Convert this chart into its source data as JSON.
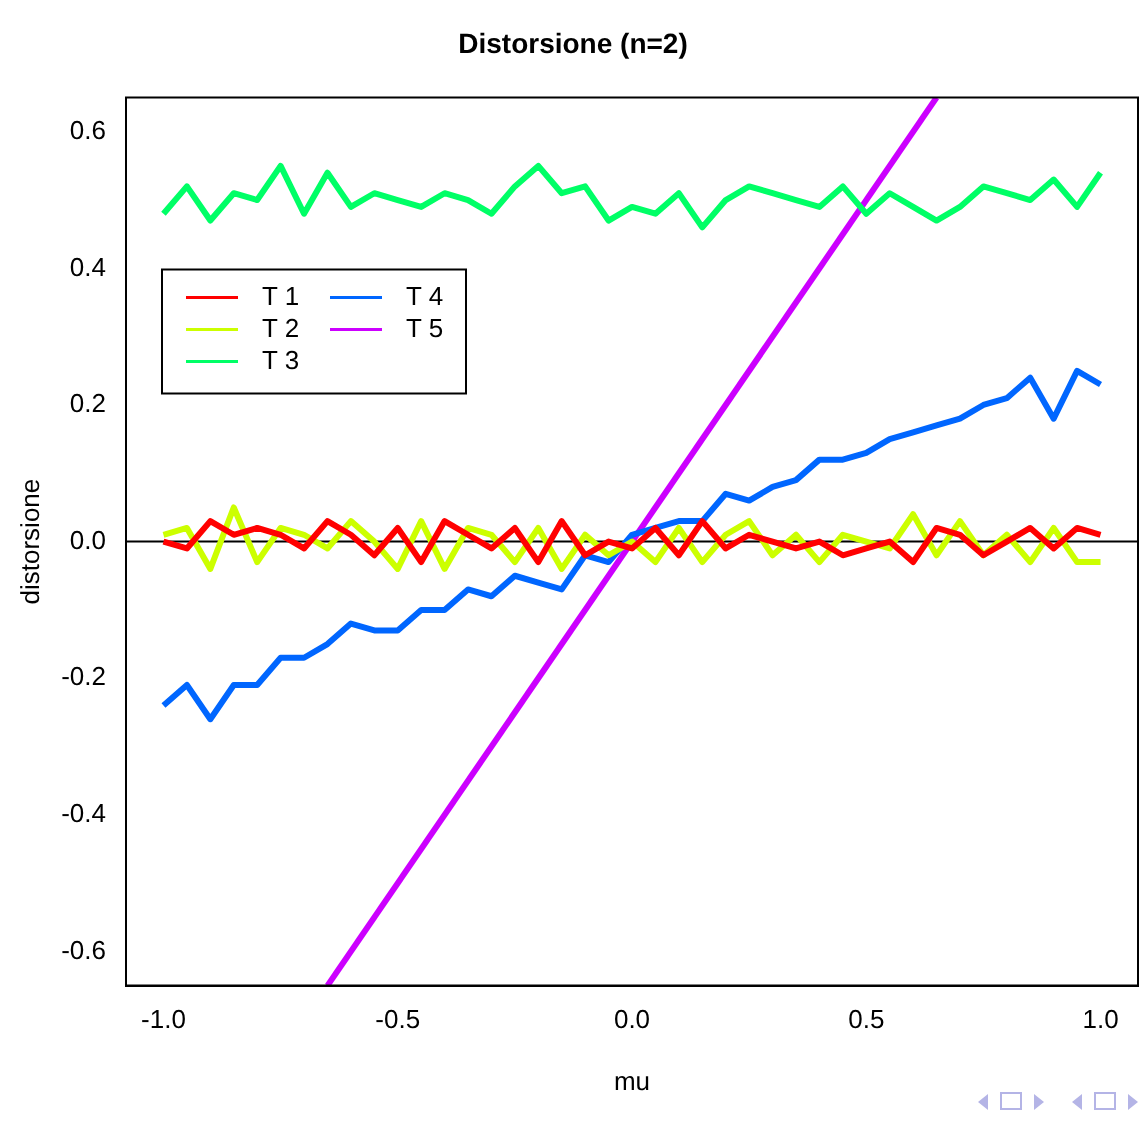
{
  "chart_data": {
    "type": "line",
    "title": "Distorsione (n=2)",
    "xlabel": "mu",
    "ylabel": "distorsione",
    "x": [
      -1,
      -0.95,
      -0.9,
      -0.85,
      -0.8,
      -0.75,
      -0.7,
      -0.65,
      -0.6,
      -0.55,
      -0.5,
      -0.45,
      -0.4,
      -0.35,
      -0.3,
      -0.25,
      -0.2,
      -0.15,
      -0.1,
      -0.05,
      0,
      0.05,
      0.1,
      0.15,
      0.2,
      0.25,
      0.3,
      0.35,
      0.4,
      0.45,
      0.5,
      0.55,
      0.6,
      0.65,
      0.7,
      0.75,
      0.8,
      0.85,
      0.9,
      0.95,
      1
    ],
    "series": [
      {
        "name": "T 1",
        "color": "#ff0000",
        "values": [
          0.0,
          -0.01,
          0.03,
          0.01,
          0.02,
          0.01,
          -0.01,
          0.03,
          0.01,
          -0.02,
          0.02,
          -0.03,
          0.03,
          0.01,
          -0.01,
          0.02,
          -0.03,
          0.03,
          -0.02,
          0.0,
          -0.01,
          0.02,
          -0.02,
          0.03,
          -0.01,
          0.01,
          0.0,
          -0.01,
          0.0,
          -0.02,
          -0.01,
          0.0,
          -0.03,
          0.02,
          0.01,
          -0.02,
          0.0,
          0.02,
          -0.01,
          0.02,
          0.01
        ]
      },
      {
        "name": "T 2",
        "color": "#ccff00",
        "values": [
          0.01,
          0.02,
          -0.04,
          0.05,
          -0.03,
          0.02,
          0.01,
          -0.01,
          0.03,
          0.0,
          -0.04,
          0.03,
          -0.04,
          0.02,
          0.01,
          -0.03,
          0.02,
          -0.04,
          0.01,
          -0.02,
          0.0,
          -0.03,
          0.02,
          -0.03,
          0.01,
          0.03,
          -0.02,
          0.01,
          -0.03,
          0.01,
          0.0,
          -0.01,
          0.04,
          -0.02,
          0.03,
          -0.02,
          0.01,
          -0.03,
          0.02,
          -0.03,
          -0.03
        ]
      },
      {
        "name": "T 3",
        "color": "#00ff66",
        "values": [
          0.48,
          0.52,
          0.47,
          0.51,
          0.5,
          0.55,
          0.48,
          0.54,
          0.49,
          0.51,
          0.5,
          0.49,
          0.51,
          0.5,
          0.48,
          0.52,
          0.55,
          0.51,
          0.52,
          0.47,
          0.49,
          0.48,
          0.51,
          0.46,
          0.5,
          0.52,
          0.51,
          0.5,
          0.49,
          0.52,
          0.48,
          0.51,
          0.49,
          0.47,
          0.49,
          0.52,
          0.51,
          0.5,
          0.53,
          0.49,
          0.54
        ]
      },
      {
        "name": "T 4",
        "color": "#0066ff",
        "values": [
          -0.24,
          -0.21,
          -0.26,
          -0.21,
          -0.21,
          -0.17,
          -0.17,
          -0.15,
          -0.12,
          -0.13,
          -0.13,
          -0.1,
          -0.1,
          -0.07,
          -0.08,
          -0.05,
          -0.06,
          -0.07,
          -0.02,
          -0.03,
          0.01,
          0.02,
          0.03,
          0.03,
          0.07,
          0.06,
          0.08,
          0.09,
          0.12,
          0.12,
          0.13,
          0.15,
          0.16,
          0.17,
          0.18,
          0.2,
          0.21,
          0.24,
          0.18,
          0.25,
          0.23
        ]
      },
      {
        "name": "T 5",
        "color": "#cc00ff",
        "x": [
          -0.65,
          0.65
        ],
        "values": [
          -0.65,
          0.65
        ]
      }
    ],
    "xlim": [
      -1.08,
      1.08
    ],
    "ylim": [
      -0.65,
      0.65
    ],
    "xticks": [
      {
        "value": -1,
        "label": "-1.0"
      },
      {
        "value": -0.5,
        "label": "-0.5"
      },
      {
        "value": 0,
        "label": "0.0"
      },
      {
        "value": 0.5,
        "label": "0.5"
      },
      {
        "value": 1,
        "label": "1.0"
      }
    ],
    "yticks": [
      {
        "value": -0.6,
        "label": "-0.6"
      },
      {
        "value": -0.4,
        "label": "-0.4"
      },
      {
        "value": -0.2,
        "label": "-0.2"
      },
      {
        "value": 0,
        "label": "0.0"
      },
      {
        "value": 0.2,
        "label": "0.2"
      },
      {
        "value": 0.4,
        "label": "0.4"
      },
      {
        "value": 0.6,
        "label": "0.6"
      }
    ],
    "ref_lines": [
      {
        "axis": "y",
        "value": 0,
        "color": "#000000"
      }
    ],
    "legend": "top left",
    "grid": false,
    "marker": "none",
    "line_style": "solid"
  }
}
